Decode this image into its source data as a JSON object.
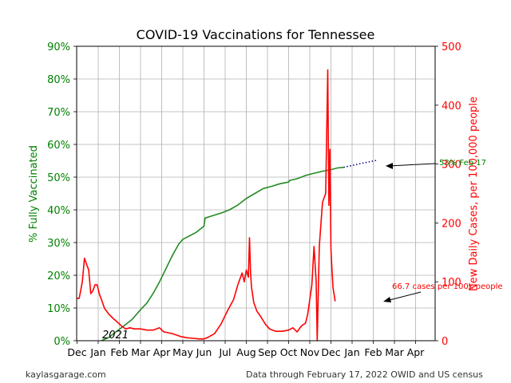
{
  "chart_data": {
    "type": "line",
    "title": "COVID-19 Vaccinations for Tennessee",
    "year_label": "2021",
    "x_ticks": [
      "Dec",
      "Jan",
      "Feb",
      "Mar",
      "Apr",
      "May",
      "Jun",
      "Jul",
      "Aug",
      "Sep",
      "Oct",
      "Nov",
      "Dec",
      "Jan",
      "Feb",
      "Mar",
      "Apr"
    ],
    "grid": true,
    "left_axis": {
      "label": "% Fully Vaccinated",
      "color": "#008000",
      "ylim": [
        0,
        90
      ],
      "ticks": [
        "0%",
        "10%",
        "20%",
        "30%",
        "40%",
        "50%",
        "60%",
        "70%",
        "80%",
        "90%"
      ]
    },
    "right_axis": {
      "label": "New Daily Cases, per 100,000 people",
      "color": "#ff0000",
      "ylim": [
        0,
        500
      ],
      "ticks": [
        "0",
        "100",
        "200",
        "300",
        "400",
        "500"
      ]
    },
    "series": [
      {
        "axis": "left",
        "color": "#228b22",
        "points": [
          [
            1.15,
            0
          ],
          [
            1.5,
            1
          ],
          [
            1.8,
            2.5
          ],
          [
            2.2,
            4.5
          ],
          [
            2.6,
            6.5
          ],
          [
            3.0,
            9.5
          ],
          [
            3.3,
            11.5
          ],
          [
            3.6,
            14.5
          ],
          [
            3.9,
            18
          ],
          [
            4.2,
            22
          ],
          [
            4.5,
            26
          ],
          [
            4.8,
            29.5
          ],
          [
            5.0,
            31
          ],
          [
            5.3,
            32
          ],
          [
            5.6,
            33
          ],
          [
            5.9,
            34.5
          ],
          [
            6.0,
            35
          ],
          [
            6.05,
            37.5
          ],
          [
            6.4,
            38.2
          ],
          [
            6.8,
            39
          ],
          [
            7.2,
            40
          ],
          [
            7.6,
            41.5
          ],
          [
            8.0,
            43.5
          ],
          [
            8.4,
            45
          ],
          [
            8.8,
            46.5
          ],
          [
            9.2,
            47.2
          ],
          [
            9.6,
            48
          ],
          [
            10.0,
            48.5
          ],
          [
            10.05,
            49
          ],
          [
            10.4,
            49.5
          ],
          [
            10.8,
            50.5
          ],
          [
            11.2,
            51.2
          ],
          [
            11.6,
            51.8
          ],
          [
            12.0,
            52.3
          ],
          [
            12.3,
            52.8
          ],
          [
            12.6,
            53
          ]
        ]
      },
      {
        "axis": "left",
        "color": "#00008b",
        "style": "dotted",
        "points": [
          [
            12.6,
            53
          ],
          [
            13.5,
            54.3
          ],
          [
            14.2,
            55.2
          ]
        ]
      },
      {
        "axis": "right",
        "color": "#ff0000",
        "points": [
          [
            0.0,
            72
          ],
          [
            0.1,
            72
          ],
          [
            0.25,
            100
          ],
          [
            0.35,
            140
          ],
          [
            0.45,
            130
          ],
          [
            0.55,
            120
          ],
          [
            0.65,
            80
          ],
          [
            0.75,
            85
          ],
          [
            0.85,
            95
          ],
          [
            0.95,
            95
          ],
          [
            1.05,
            80
          ],
          [
            1.15,
            70
          ],
          [
            1.3,
            55
          ],
          [
            1.5,
            45
          ],
          [
            1.7,
            38
          ],
          [
            1.9,
            32
          ],
          [
            2.1,
            25
          ],
          [
            2.3,
            20
          ],
          [
            2.5,
            22
          ],
          [
            2.7,
            20
          ],
          [
            3.0,
            20
          ],
          [
            3.3,
            18
          ],
          [
            3.6,
            18
          ],
          [
            3.9,
            22
          ],
          [
            4.1,
            15
          ],
          [
            4.5,
            12
          ],
          [
            4.9,
            7
          ],
          [
            5.2,
            5
          ],
          [
            5.5,
            4
          ],
          [
            5.8,
            3
          ],
          [
            6.0,
            3
          ],
          [
            6.2,
            6
          ],
          [
            6.5,
            12
          ],
          [
            6.8,
            28
          ],
          [
            7.1,
            50
          ],
          [
            7.4,
            70
          ],
          [
            7.6,
            95
          ],
          [
            7.8,
            115
          ],
          [
            7.9,
            100
          ],
          [
            8.0,
            120
          ],
          [
            8.1,
            108
          ],
          [
            8.15,
            175
          ],
          [
            8.2,
            115
          ],
          [
            8.25,
            90
          ],
          [
            8.35,
            65
          ],
          [
            8.5,
            50
          ],
          [
            8.7,
            40
          ],
          [
            8.9,
            28
          ],
          [
            9.1,
            20
          ],
          [
            9.4,
            16
          ],
          [
            9.7,
            16
          ],
          [
            10.0,
            18
          ],
          [
            10.2,
            22
          ],
          [
            10.4,
            15
          ],
          [
            10.6,
            25
          ],
          [
            10.8,
            30
          ],
          [
            10.9,
            45
          ],
          [
            11.1,
            95
          ],
          [
            11.2,
            160
          ],
          [
            11.3,
            100
          ],
          [
            11.35,
            0
          ],
          [
            11.45,
            160
          ],
          [
            11.6,
            235
          ],
          [
            11.75,
            250
          ],
          [
            11.85,
            460
          ],
          [
            11.9,
            230
          ],
          [
            11.95,
            325
          ],
          [
            12.0,
            155
          ],
          [
            12.05,
            120
          ],
          [
            12.1,
            90
          ],
          [
            12.2,
            67
          ]
        ]
      }
    ],
    "annotations": [
      {
        "text": "53% Feb 17",
        "color": "#008000"
      },
      {
        "text": "66.7 cases per 100k people",
        "color": "#ff0000"
      }
    ]
  },
  "footer": {
    "source": "kaylasgarage.com",
    "note": "Data through February 17, 2022 OWID and US census"
  }
}
